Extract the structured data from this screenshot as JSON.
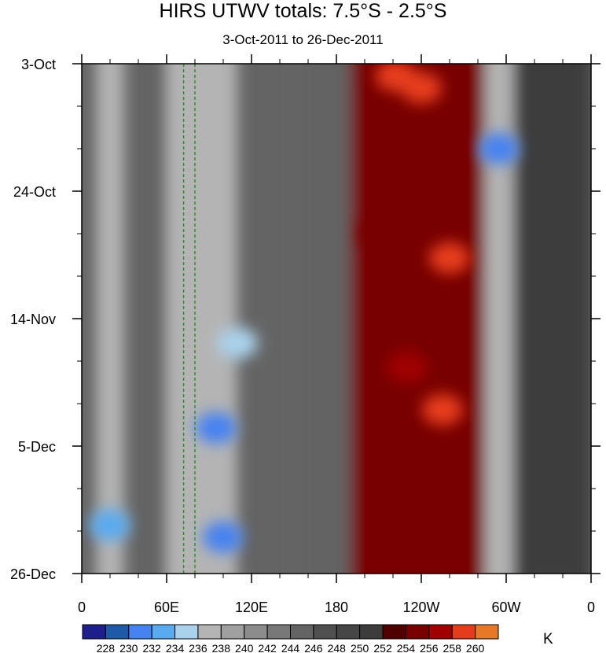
{
  "title": "HIRS UTWV totals: 7.5°S - 2.5°S",
  "subtitle": "3-Oct-2011 to 26-Dec-2011",
  "chart_data": {
    "type": "heatmap",
    "x_ticks": [
      {
        "lon": 0,
        "label": "0"
      },
      {
        "lon": 60,
        "label": "60E"
      },
      {
        "lon": 120,
        "label": "120E"
      },
      {
        "lon": 180,
        "label": "180"
      },
      {
        "lon": 240,
        "label": "120W"
      },
      {
        "lon": 300,
        "label": "60W"
      },
      {
        "lon": 360,
        "label": "0"
      }
    ],
    "xlim": [
      0,
      360
    ],
    "y_ticks": [
      {
        "day": 0,
        "label": "3-Oct"
      },
      {
        "day": 21,
        "label": "24-Oct"
      },
      {
        "day": 42,
        "label": "14-Nov"
      },
      {
        "day": 63,
        "label": "5-Dec"
      },
      {
        "day": 84,
        "label": "26-Dec"
      }
    ],
    "ylim": [
      0,
      84
    ],
    "y_direction": "time increases downward",
    "reference_lines_lon": [
      72,
      80
    ],
    "reference_line_color": "#2f8f2f",
    "colorbar": {
      "unit": "K",
      "levels": [
        228,
        230,
        232,
        234,
        236,
        238,
        240,
        242,
        244,
        246,
        248,
        250,
        252,
        254,
        256,
        258,
        260
      ],
      "colors": [
        "#1e1e8c",
        "#1e5aa8",
        "#4682f0",
        "#5aaaf0",
        "#aad2ec",
        "#b4b4b4",
        "#a0a0a0",
        "#8c8c8c",
        "#787878",
        "#646464",
        "#505050",
        "#464646",
        "#3c3c3c",
        "#500000",
        "#780000",
        "#a00000",
        "#e63c1e",
        "#e67828"
      ]
    },
    "feature_bands": [
      {
        "lon_start": 10,
        "lon_end": 30,
        "day_start": 0,
        "day_end": 84,
        "level": 236
      },
      {
        "lon_start": 40,
        "lon_end": 60,
        "day_start": 0,
        "day_end": 84,
        "level": 244
      },
      {
        "lon_start": 60,
        "lon_end": 110,
        "day_start": 0,
        "day_end": 84,
        "level": 236
      },
      {
        "lon_start": 150,
        "lon_end": 190,
        "day_start": 0,
        "day_end": 84,
        "level": 244
      },
      {
        "lon_start": 190,
        "lon_end": 285,
        "day_start": 0,
        "day_end": 84,
        "level": 254
      },
      {
        "lon_start": 285,
        "lon_end": 305,
        "day_start": 0,
        "day_end": 84,
        "level": 236
      },
      {
        "lon_start": 305,
        "lon_end": 360,
        "day_start": 0,
        "day_end": 84,
        "level": 250
      }
    ],
    "feature_blobs": [
      {
        "lon": 240,
        "day": 4,
        "level": 258
      },
      {
        "lon": 222,
        "day": 2,
        "level": 258
      },
      {
        "lon": 295,
        "day": 14,
        "level": 230
      },
      {
        "lon": 95,
        "day": 60,
        "level": 230
      },
      {
        "lon": 100,
        "day": 78,
        "level": 230
      },
      {
        "lon": 260,
        "day": 32,
        "level": 258
      },
      {
        "lon": 255,
        "day": 57,
        "level": 258
      },
      {
        "lon": 210,
        "day": 28,
        "level": 254
      },
      {
        "lon": 230,
        "day": 50,
        "level": 256
      },
      {
        "lon": 20,
        "day": 76,
        "level": 232
      },
      {
        "lon": 110,
        "day": 46,
        "level": 234
      }
    ]
  }
}
